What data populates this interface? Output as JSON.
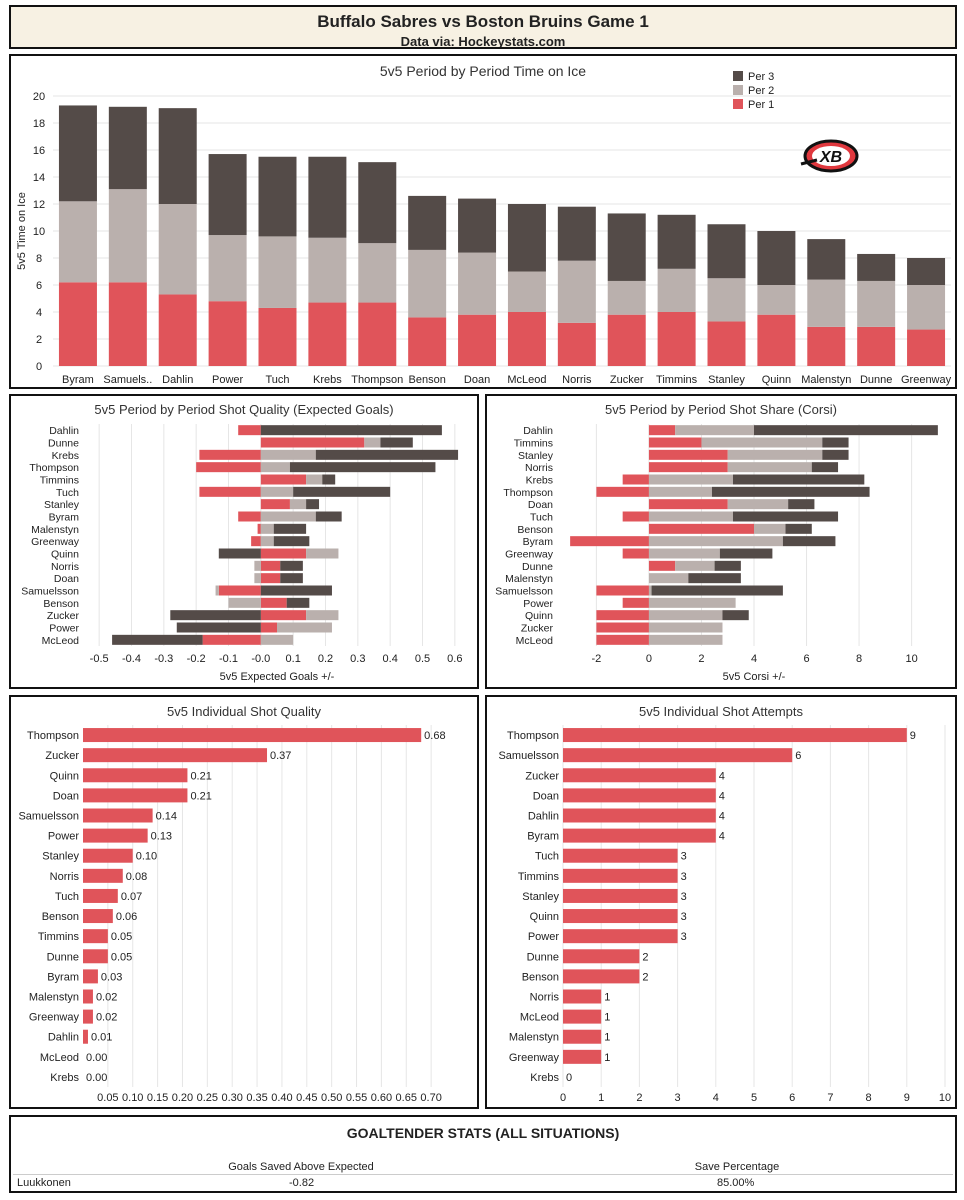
{
  "header": {
    "title": "Buffalo Sabres vs Boston Bruins Game 1",
    "subtitle": "Data via: Hockeystats.com"
  },
  "logo_text": "XB",
  "colors": {
    "per1": "#e0545a",
    "per2": "#bab0ad",
    "per3": "#544b48",
    "bar": "#e0545a",
    "grid": "#e6e6e6"
  },
  "chart_data": [
    {
      "type": "bar",
      "stacked": true,
      "title": "5v5 Period by Period Time on Ice",
      "ylabel": "5v5 Time on Ice",
      "xlabel": "",
      "ylim": [
        0,
        20
      ],
      "yticks": [
        0,
        2,
        4,
        6,
        8,
        10,
        12,
        14,
        16,
        18,
        20
      ],
      "legend_position": "top-right",
      "categories": [
        "Byram",
        "Samuels..",
        "Dahlin",
        "Power",
        "Tuch",
        "Krebs",
        "Thompson",
        "Benson",
        "Doan",
        "McLeod",
        "Norris",
        "Zucker",
        "Timmins",
        "Stanley",
        "Quinn",
        "Malenstyn",
        "Dunne",
        "Greenway"
      ],
      "series": [
        {
          "name": "Per 1",
          "values": [
            6.2,
            6.2,
            5.3,
            4.8,
            4.3,
            4.7,
            4.7,
            3.6,
            3.8,
            4.0,
            3.2,
            3.8,
            4.0,
            3.3,
            3.8,
            2.9,
            2.9,
            2.7
          ]
        },
        {
          "name": "Per 2",
          "values": [
            6.0,
            6.9,
            6.7,
            4.9,
            5.3,
            4.8,
            4.4,
            5.0,
            4.6,
            3.0,
            4.6,
            2.5,
            3.2,
            3.2,
            2.2,
            3.5,
            3.4,
            3.3
          ]
        },
        {
          "name": "Per 3",
          "values": [
            7.1,
            6.1,
            7.1,
            6.0,
            5.9,
            6.0,
            6.0,
            4.0,
            4.0,
            5.0,
            4.0,
            5.0,
            4.0,
            4.0,
            4.0,
            3.0,
            2.0,
            2.0
          ]
        }
      ],
      "legend": [
        "Per 3",
        "Per 2",
        "Per 1"
      ]
    },
    {
      "type": "bar",
      "orientation": "horizontal",
      "diverging": true,
      "title": "5v5 Period by Period Shot Quality (Expected Goals)",
      "xlabel": "5v5 Expected Goals +/-",
      "xlim": [
        -0.55,
        0.65
      ],
      "xticks": [
        -0.5,
        -0.4,
        -0.3,
        -0.2,
        -0.1,
        0.0,
        0.1,
        0.2,
        0.3,
        0.4,
        0.5,
        0.6
      ],
      "xtick_labels": [
        "-0.5",
        "-0.4",
        "-0.3",
        "-0.2",
        "-0.1",
        "-0.0",
        "0.1",
        "0.2",
        "0.3",
        "0.4",
        "0.5",
        "0.6"
      ],
      "categories": [
        "Dahlin",
        "Dunne",
        "Krebs",
        "Thompson",
        "Timmins",
        "Tuch",
        "Stanley",
        "Byram",
        "Malenstyn",
        "Greenway",
        "Quinn",
        "Norris",
        "Doan",
        "Samuelsson",
        "Benson",
        "Zucker",
        "Power",
        "McLeod"
      ],
      "series": [
        {
          "name": "Per 1",
          "values": [
            -0.07,
            0.32,
            -0.19,
            -0.2,
            0.14,
            -0.19,
            0.09,
            -0.07,
            -0.01,
            -0.03,
            0.14,
            0.06,
            0.06,
            -0.13,
            0.08,
            0.14,
            0.05,
            -0.18
          ]
        },
        {
          "name": "Per 2",
          "values": [
            0.0,
            0.05,
            0.17,
            0.09,
            0.05,
            0.1,
            0.05,
            0.17,
            0.04,
            0.04,
            0.1,
            -0.02,
            -0.02,
            -0.01,
            -0.1,
            0.1,
            0.17,
            0.1
          ]
        },
        {
          "name": "Per 3",
          "values": [
            0.56,
            0.1,
            0.44,
            0.45,
            0.04,
            0.3,
            0.04,
            0.08,
            0.1,
            0.11,
            -0.13,
            0.07,
            0.07,
            0.22,
            0.07,
            -0.28,
            -0.26,
            -0.28
          ]
        }
      ]
    },
    {
      "type": "bar",
      "orientation": "horizontal",
      "diverging": true,
      "title": "5v5 Period by Period Shot Share (Corsi)",
      "xlabel": "5v5 Corsi +/-",
      "xlim": [
        -3.5,
        11.5
      ],
      "xticks": [
        -2,
        0,
        2,
        4,
        6,
        8,
        10
      ],
      "xtick_labels": [
        "-2",
        "0",
        "2",
        "4",
        "6",
        "8",
        "10"
      ],
      "categories": [
        "Dahlin",
        "Timmins",
        "Stanley",
        "Norris",
        "Krebs",
        "Thompson",
        "Doan",
        "Tuch",
        "Benson",
        "Byram",
        "Greenway",
        "Dunne",
        "Malenstyn",
        "Samuelsson",
        "Power",
        "Quinn",
        "Zucker",
        "McLeod"
      ],
      "series": [
        {
          "name": "Per 1",
          "values": [
            1,
            2,
            3,
            3,
            -1,
            -2,
            3,
            -1,
            4,
            -3,
            -1,
            1,
            0,
            -2,
            -1,
            -2,
            -2,
            -2
          ]
        },
        {
          "name": "Per 2",
          "values": [
            3,
            4.6,
            3.6,
            3.2,
            3.2,
            2.4,
            2.3,
            3.2,
            1.2,
            5.1,
            2.7,
            1.5,
            1.5,
            0.1,
            3.3,
            2.8,
            2.8,
            2.8
          ]
        },
        {
          "name": "Per 3",
          "values": [
            7,
            1,
            1,
            1,
            5,
            6,
            1,
            4,
            1,
            2,
            2,
            1,
            2,
            5,
            0,
            1,
            0,
            0
          ]
        }
      ]
    },
    {
      "type": "bar",
      "orientation": "horizontal",
      "title": "5v5 Individual Shot Quality",
      "xlim": [
        0,
        0.75
      ],
      "xticks": [
        0.05,
        0.1,
        0.15,
        0.2,
        0.25,
        0.3,
        0.35,
        0.4,
        0.45,
        0.5,
        0.55,
        0.6,
        0.65,
        0.7
      ],
      "xtick_labels": [
        "0.05",
        "0.10",
        "0.15",
        "0.20",
        "0.25",
        "0.30",
        "0.35",
        "0.40",
        "0.45",
        "0.50",
        "0.55",
        "0.60",
        "0.65",
        "0.70"
      ],
      "categories": [
        "Thompson",
        "Zucker",
        "Quinn",
        "Doan",
        "Samuelsson",
        "Power",
        "Stanley",
        "Norris",
        "Tuch",
        "Benson",
        "Timmins",
        "Dunne",
        "Byram",
        "Malenstyn",
        "Greenway",
        "Dahlin",
        "McLeod",
        "Krebs"
      ],
      "values": [
        0.68,
        0.37,
        0.21,
        0.21,
        0.14,
        0.13,
        0.1,
        0.08,
        0.07,
        0.06,
        0.05,
        0.05,
        0.03,
        0.02,
        0.02,
        0.01,
        0.0,
        0.0
      ],
      "data_labels": [
        "0.68",
        "0.37",
        "0.21",
        "0.21",
        "0.14",
        "0.13",
        "0.10",
        "0.08",
        "0.07",
        "0.06",
        "0.05",
        "0.05",
        "0.03",
        "0.02",
        "0.02",
        "0.01",
        "0.00",
        "0.00"
      ]
    },
    {
      "type": "bar",
      "orientation": "horizontal",
      "title": "5v5 Individual Shot Attempts",
      "xlim": [
        0,
        10
      ],
      "xticks": [
        0,
        1,
        2,
        3,
        4,
        5,
        6,
        7,
        8,
        9,
        10
      ],
      "xtick_labels": [
        "0",
        "1",
        "2",
        "3",
        "4",
        "5",
        "6",
        "7",
        "8",
        "9",
        "10"
      ],
      "categories": [
        "Thompson",
        "Samuelsson",
        "Zucker",
        "Doan",
        "Dahlin",
        "Byram",
        "Tuch",
        "Timmins",
        "Stanley",
        "Quinn",
        "Power",
        "Dunne",
        "Benson",
        "Norris",
        "McLeod",
        "Malenstyn",
        "Greenway",
        "Krebs"
      ],
      "values": [
        9,
        6,
        4,
        4,
        4,
        4,
        3,
        3,
        3,
        3,
        3,
        2,
        2,
        1,
        1,
        1,
        1,
        0
      ],
      "data_labels": [
        "9",
        "6",
        "4",
        "4",
        "4",
        "4",
        "3",
        "3",
        "3",
        "3",
        "3",
        "2",
        "2",
        "1",
        "1",
        "1",
        "1",
        "0"
      ]
    }
  ],
  "goaltender": {
    "title": "GOALTENDER STATS (ALL SITUATIONS)",
    "col_gsax": "Goals Saved Above Expected",
    "col_svpct": "Save Percentage",
    "name": "Luukkonen",
    "gsax": "-0.82",
    "svpct": "85.00%"
  }
}
